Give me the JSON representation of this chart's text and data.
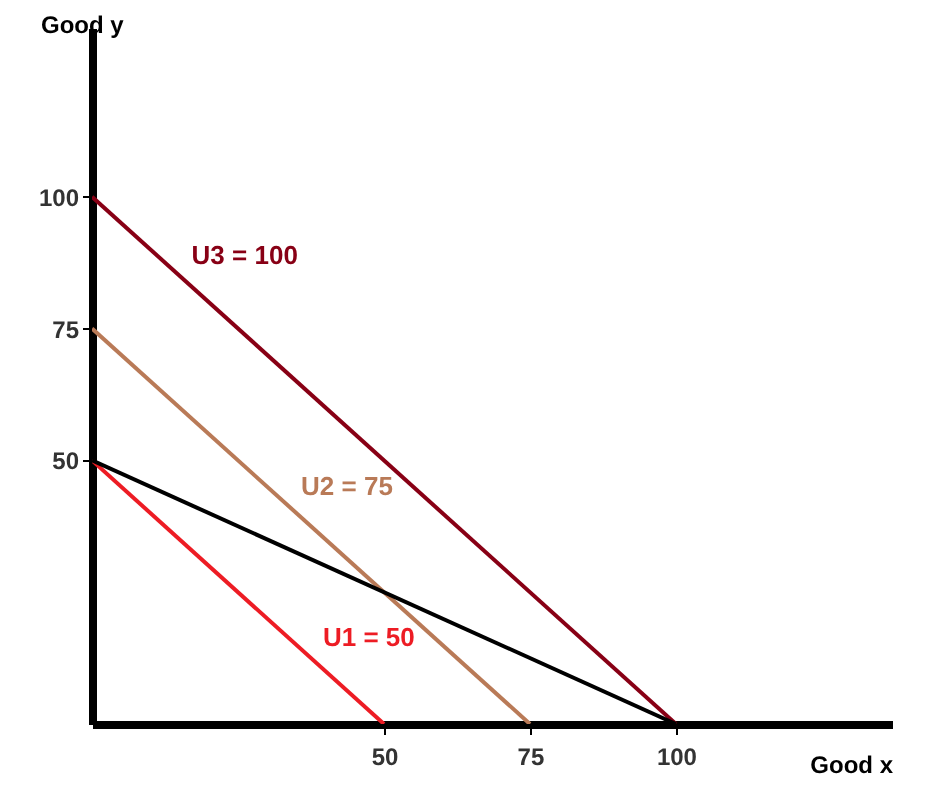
{
  "chart_data": {
    "type": "line",
    "xlabel": "Good x",
    "ylabel": "Good y",
    "xlim": [
      0,
      137
    ],
    "ylim": [
      0,
      132
    ],
    "xticks": [
      50,
      75,
      100
    ],
    "yticks": [
      50,
      75,
      100
    ],
    "grid": false,
    "series": [
      {
        "name": "U3 = 100",
        "color": "#880015",
        "x": [
          0,
          100
        ],
        "values": [
          100,
          0
        ]
      },
      {
        "name": "U2 = 75",
        "color": "#b97a57",
        "x": [
          0,
          75
        ],
        "values": [
          75,
          0
        ]
      },
      {
        "name": "U1 = 50",
        "color": "#ed1c24",
        "x": [
          0,
          50
        ],
        "values": [
          50,
          0
        ]
      },
      {
        "color": "#000000",
        "x": [
          0,
          100
        ],
        "values": [
          50,
          0
        ]
      }
    ]
  }
}
